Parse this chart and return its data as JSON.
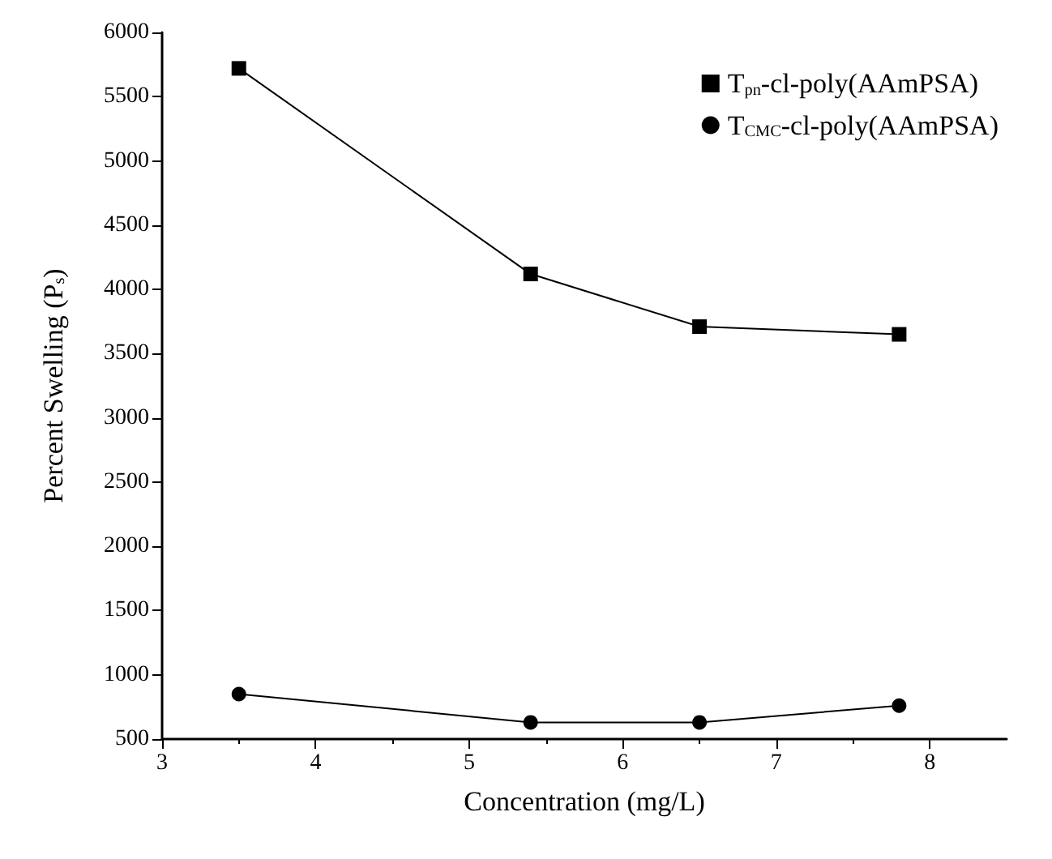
{
  "chart_data": {
    "type": "line",
    "xlabel": "Concentration (mg/L)",
    "ylabel": "Percent Swelling (P$_{s}$)",
    "x": [
      3.5,
      5.4,
      6.5,
      7.8
    ],
    "series": [
      {
        "name": "T$_{pn}$-cl-poly(AAmPSA)",
        "color": "#000000",
        "marker": "square",
        "values": [
          5720,
          4120,
          3710,
          3650
        ]
      },
      {
        "name": "T$_{CMC}$-cl-poly(AAmPSA)",
        "color": "#000000",
        "marker": "circle",
        "values": [
          850,
          630,
          630,
          760
        ]
      }
    ],
    "xlim": [
      3,
      8.5
    ],
    "xticks": [
      3,
      4,
      5,
      6,
      7,
      8
    ],
    "ylim": [
      500,
      6000
    ],
    "yticks": [
      500,
      1000,
      1500,
      2000,
      2500,
      3000,
      3500,
      4000,
      4500,
      5000,
      5500,
      6000
    ],
    "grid": false,
    "legend": "top right",
    "line_style": "solid"
  }
}
